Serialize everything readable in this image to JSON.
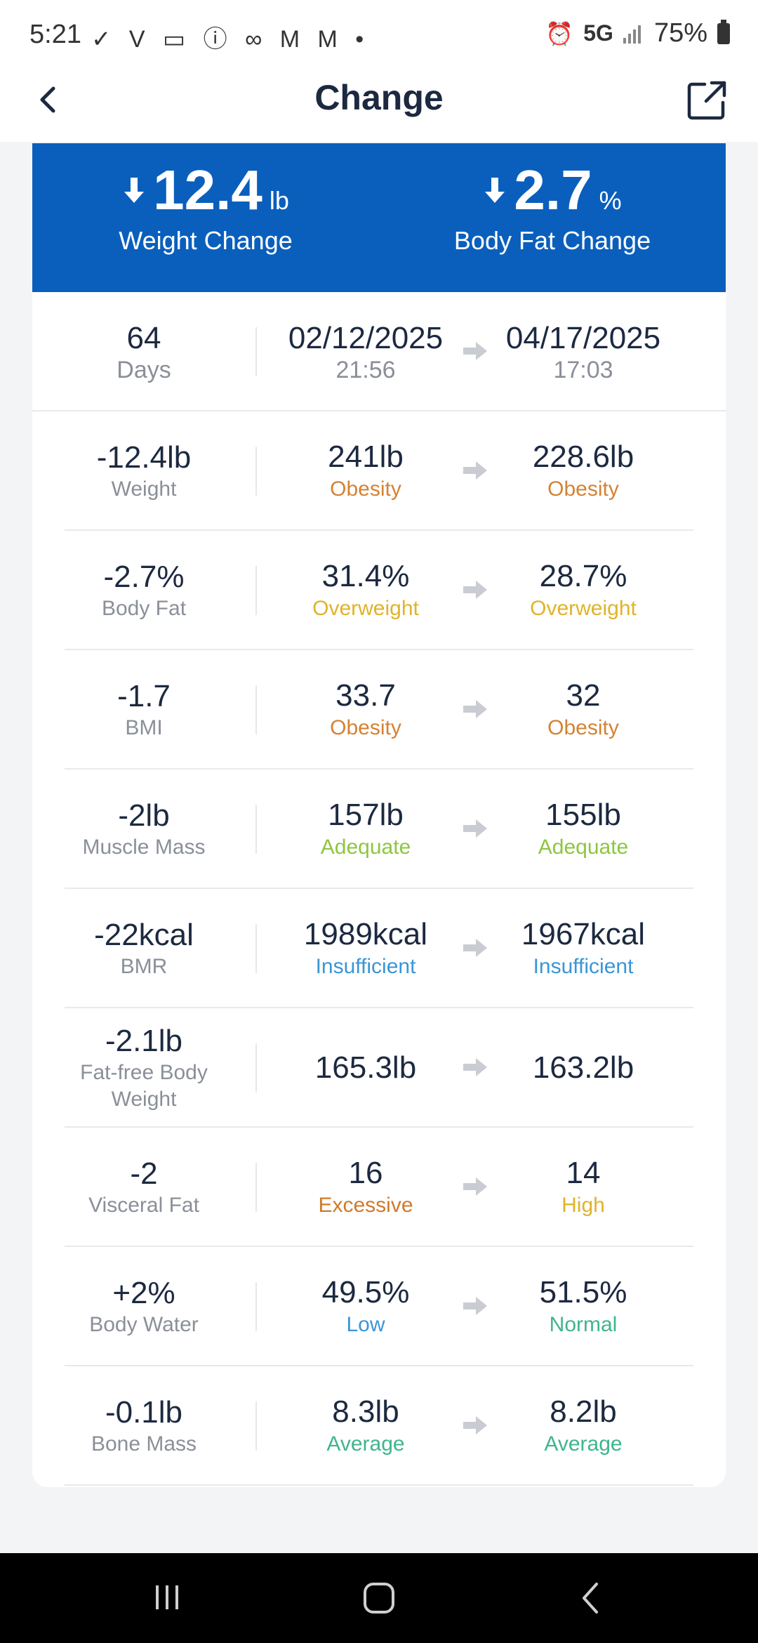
{
  "status_bar": {
    "time": "5:21",
    "left_icons": "✓ V ▭ ⓘ ∞ M M •",
    "network": "5G",
    "battery": "75%"
  },
  "header": {
    "title": "Change"
  },
  "summary": {
    "weight_change_value": "12.4",
    "weight_change_unit": "lb",
    "weight_change_label": "Weight Change",
    "body_fat_change_value": "2.7",
    "body_fat_change_unit": "%",
    "body_fat_change_label": "Body Fat Change"
  },
  "date_range": {
    "days_value": "64",
    "days_label": "Days",
    "start_date": "02/12/2025",
    "start_time": "21:56",
    "end_date": "04/17/2025",
    "end_time": "17:03"
  },
  "metrics": [
    {
      "change": "-12.4lb",
      "name": "Weight",
      "from_value": "241lb",
      "from_status": "Obesity",
      "to_value": "228.6lb",
      "to_status": "Obesity"
    },
    {
      "change": "-2.7%",
      "name": "Body Fat",
      "from_value": "31.4%",
      "from_status": "Overweight",
      "to_value": "28.7%",
      "to_status": "Overweight"
    },
    {
      "change": "-1.7",
      "name": "BMI",
      "from_value": "33.7",
      "from_status": "Obesity",
      "to_value": "32",
      "to_status": "Obesity"
    },
    {
      "change": "-2lb",
      "name": "Muscle Mass",
      "from_value": "157lb",
      "from_status": "Adequate",
      "to_value": "155lb",
      "to_status": "Adequate"
    },
    {
      "change": "-22kcal",
      "name": "BMR",
      "from_value": "1989kcal",
      "from_status": "Insufficient",
      "to_value": "1967kcal",
      "to_status": "Insufficient"
    },
    {
      "change": "-2.1lb",
      "name": "Fat-free Body Weight",
      "from_value": "165.3lb",
      "from_status": "",
      "to_value": "163.2lb",
      "to_status": ""
    },
    {
      "change": "-2",
      "name": "Visceral Fat",
      "from_value": "16",
      "from_status": "Excessive",
      "to_value": "14",
      "to_status": "High"
    },
    {
      "change": "+2%",
      "name": "Body Water",
      "from_value": "49.5%",
      "from_status": "Low",
      "to_value": "51.5%",
      "to_status": "Normal"
    },
    {
      "change": "-0.1lb",
      "name": "Bone Mass",
      "from_value": "8.3lb",
      "from_status": "Average",
      "to_value": "8.2lb",
      "to_status": "Average"
    }
  ],
  "colors": {
    "banner": "#0a5fbd",
    "obesity": "#d48233",
    "overweight": "#e0b32a",
    "adequate": "#8dc641",
    "insufficient": "#3a96d6",
    "excessive": "#d07a2a",
    "high": "#e0b32a",
    "low": "#3a96d6",
    "normal": "#3fb58b",
    "average": "#3fb58b"
  }
}
